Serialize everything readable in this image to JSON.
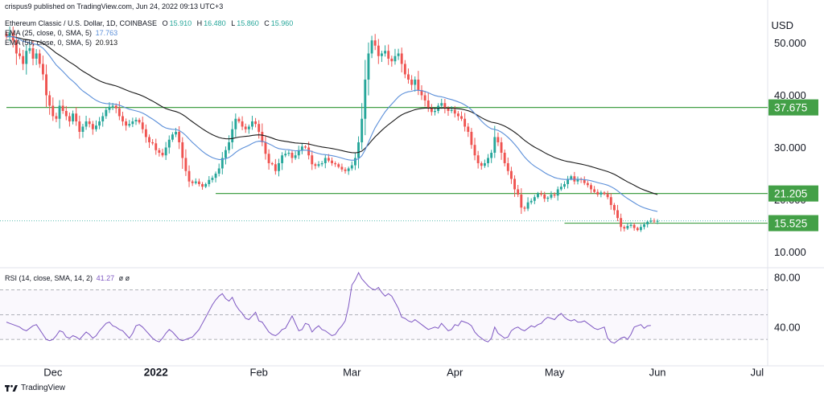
{
  "header": {
    "meta": "crispus9 published on TradingView.com, Jun 24, 2022 09:13 UTC+3",
    "title": "Ethereum Classic / U.S. Dollar, 1D, COINBASE",
    "ohlc": [
      {
        "label": "O",
        "value": "15.910"
      },
      {
        "label": "H",
        "value": "16.480"
      },
      {
        "label": "L",
        "value": "15.860"
      },
      {
        "label": "C",
        "value": "15.960"
      }
    ],
    "ema25": {
      "label": "EMA (25, close, 0, SMA, 5)",
      "value": "17.763"
    },
    "ema50": {
      "label": "EMA (50, close, 0, SMA, 5)",
      "value": "20.913"
    },
    "rsi": {
      "label": "RSI (14, close, SMA, 14, 2)",
      "value": "41.27",
      "extra": "ø ø"
    }
  },
  "currency": "USD",
  "footer": {
    "brand": "TradingView"
  },
  "colors": {
    "up": "#26a69a",
    "down": "#ef5350",
    "ema25": "#5b8fd9",
    "ema50": "#1a1a1a",
    "level": "#43a047",
    "rsi": "#7e57c2"
  },
  "chart_data": {
    "type": "candlestick",
    "price_axis": {
      "ticks": [
        "50.000",
        "40.000",
        "30.000",
        "10.000"
      ],
      "tick_values": [
        50,
        40,
        30,
        10
      ],
      "partially_hidden_tick": {
        "label": "20.000",
        "value": 20
      },
      "ylim": [
        7.3,
        57
      ]
    },
    "time_axis": {
      "labels": [
        "Dec",
        "2022",
        "Feb",
        "Mar",
        "Apr",
        "May",
        "Jun",
        "Jul"
      ],
      "label_days": [
        0,
        31,
        62,
        90,
        121,
        151,
        182,
        212
      ],
      "start_day": -14,
      "last_day": 205
    },
    "horizontal_levels": [
      {
        "label": "37.675",
        "value": 37.675,
        "from_day": -14
      },
      {
        "label": "21.205",
        "value": 21.205,
        "from_day": 49
      },
      {
        "label": "15.525",
        "value": 15.525,
        "from_day": 154
      }
    ],
    "closes": [
      51.2,
      52,
      50.5,
      48,
      47.5,
      46,
      48.5,
      49,
      47,
      48,
      46,
      44,
      40,
      38,
      36,
      35.5,
      38,
      37,
      36,
      35,
      36.5,
      35,
      33,
      34,
      35,
      34.5,
      33.5,
      34.2,
      35,
      36,
      37.2,
      37.8,
      38,
      37.5,
      36,
      35,
      34.2,
      34.5,
      35,
      35.3,
      34.8,
      33.5,
      32,
      31,
      30.8,
      29.5,
      29,
      28.5,
      30,
      31.5,
      32.5,
      33,
      31,
      28,
      25.5,
      23.5,
      23.2,
      23.5,
      23,
      22.5,
      23,
      23.8,
      24.2,
      25,
      26,
      28,
      29.5,
      31,
      33.5,
      35.5,
      35,
      34,
      33.5,
      34,
      35,
      34.5,
      33,
      31,
      28.8,
      27,
      26.8,
      25.5,
      27,
      28.5,
      28.8,
      29,
      28,
      28.5,
      29.5,
      30.2,
      30,
      28.5,
      26.8,
      26.5,
      26.8,
      27,
      28,
      27.5,
      27,
      26.8,
      26.3,
      25.8,
      25.5,
      26,
      26.6,
      28,
      31,
      35.5,
      43,
      48,
      50.5,
      49.5,
      47.5,
      48,
      48.5,
      47,
      46.5,
      47.5,
      48,
      46,
      44,
      43,
      42,
      43,
      41,
      40,
      39,
      37.5,
      36.8,
      37,
      38,
      38.5,
      37.5,
      37,
      37.2,
      36.5,
      36,
      35.5,
      34,
      33,
      30.5,
      28.5,
      27,
      26.5,
      27,
      28,
      29,
      32,
      31,
      29,
      27,
      25.5,
      24,
      22,
      21,
      18.5,
      18.3,
      19.5,
      19.8,
      20.5,
      21.2,
      21,
      20.2,
      20.4,
      21,
      20.8,
      22,
      22.5,
      23,
      24,
      24.5,
      23.5,
      24,
      23.8,
      23.2,
      22.8,
      22,
      21.5,
      21,
      21.4,
      21.1,
      20.5,
      19,
      18,
      16.5,
      14.8,
      14.5,
      15,
      15.2,
      14.6,
      14.2,
      14.8,
      15.3,
      15.8,
      16,
      15.9,
      15.96
    ],
    "series": [
      {
        "name": "EMA (25, close, 0, SMA, 5)",
        "last": 17.763
      },
      {
        "name": "EMA (50, close, 0, SMA, 5)",
        "last": 20.913
      }
    ],
    "rsi": {
      "name": "RSI (14, close, SMA, 14, 2)",
      "last": 41.27,
      "ticks": [
        "80.00",
        "40.00"
      ],
      "tick_values": [
        80,
        40
      ],
      "band_lines": [
        70,
        50,
        30
      ],
      "ylim": [
        21,
        86
      ],
      "values": [
        44,
        43,
        42,
        41,
        40,
        38,
        37,
        39,
        41,
        42,
        38,
        34,
        30,
        29,
        30,
        33,
        37,
        36,
        32,
        31,
        33,
        32,
        30,
        33,
        36,
        34,
        31,
        33,
        37,
        40,
        43,
        44,
        41,
        40,
        38,
        37,
        34,
        31,
        35,
        41,
        42,
        40,
        37,
        34,
        31,
        29,
        28,
        31,
        35,
        38,
        36,
        33,
        30,
        29,
        30,
        31,
        32,
        35,
        38,
        43,
        48,
        53,
        58,
        62,
        65,
        67,
        63,
        61,
        64,
        58,
        54,
        51,
        47,
        46,
        49,
        52,
        45,
        44,
        40,
        36,
        34,
        33,
        35,
        38,
        39,
        44,
        49,
        43,
        37,
        38,
        43,
        42,
        36,
        39,
        41,
        38,
        37,
        35,
        33,
        34,
        38,
        41,
        45,
        57,
        74,
        78,
        84,
        79,
        76,
        73,
        71,
        70,
        72,
        68,
        65,
        67,
        65,
        60,
        55,
        48,
        47,
        45,
        44,
        46,
        44,
        42,
        40,
        38,
        39,
        40,
        39,
        43,
        40,
        37,
        38,
        42,
        41,
        45,
        44,
        43,
        41,
        36,
        33,
        31,
        29,
        28,
        31,
        40,
        35,
        33,
        31,
        32,
        37,
        39,
        40,
        38,
        37,
        39,
        41,
        40,
        42,
        43,
        46,
        48,
        47,
        46,
        49,
        51,
        48,
        46,
        45,
        46,
        44,
        44,
        45,
        43,
        41,
        39,
        38,
        39,
        40,
        31,
        28,
        27,
        29,
        31,
        32,
        30,
        34,
        40,
        41,
        42,
        39,
        41,
        41.27
      ]
    }
  }
}
